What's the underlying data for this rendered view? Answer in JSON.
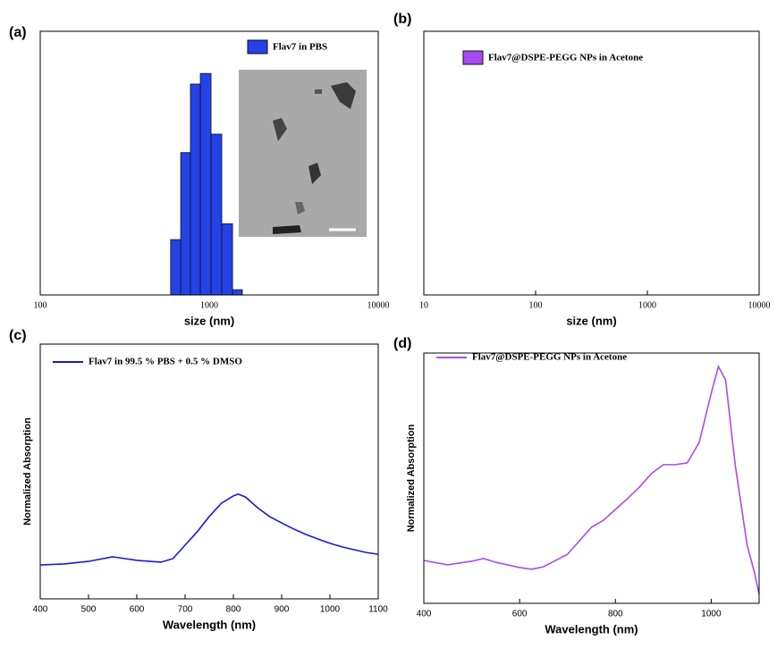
{
  "chart_data": [
    {
      "type": "histogram",
      "label": "(a)",
      "xlabel": "size (nm)",
      "xscale": "log",
      "xlim": [
        100,
        10000
      ],
      "xticks": [
        100,
        1000,
        10000
      ],
      "ylim": [
        0,
        100
      ],
      "legend": "upper right",
      "bins": [
        591,
        678,
        774,
        886,
        1025,
        1186,
        1374,
        1570
      ],
      "series": [
        {
          "name": "Flav7 in PBS",
          "color": "#2442e6",
          "values": [
            21,
            54,
            80,
            84,
            61,
            27,
            2
          ]
        }
      ]
    },
    {
      "type": "histogram",
      "label": "(b)",
      "xlabel": "size (nm)",
      "xscale": "log",
      "xlim": [
        10,
        10000
      ],
      "xticks": [
        10,
        100,
        1000,
        10000
      ],
      "ylim": [
        0,
        100
      ],
      "legend": "upper left",
      "bins": [],
      "series": [
        {
          "name": "Flav7@DSPE-PEGG NPs in Acetone",
          "color": "#a64cf2",
          "values": []
        }
      ]
    },
    {
      "type": "line",
      "label": "(c)",
      "xlabel": "Wavelength (nm)",
      "ylabel": "Normalized Absorption",
      "xlim": [
        400,
        1100
      ],
      "xticks": [
        400,
        500,
        600,
        700,
        800,
        900,
        1000,
        1100
      ],
      "ylim": [
        0,
        1
      ],
      "legend": "upper left",
      "x": [
        400,
        450,
        500,
        550,
        600,
        650,
        675,
        700,
        725,
        750,
        775,
        800,
        810,
        825,
        850,
        875,
        900,
        925,
        950,
        975,
        1000,
        1025,
        1050,
        1075,
        1100
      ],
      "series": [
        {
          "name": "Flav7 in 99.5 % PBS + 0.5 %  DMSO",
          "color": "#1a1ad6",
          "values": [
            0.133,
            0.137,
            0.147,
            0.165,
            0.151,
            0.144,
            0.158,
            0.211,
            0.263,
            0.323,
            0.375,
            0.404,
            0.411,
            0.4,
            0.358,
            0.323,
            0.298,
            0.274,
            0.253,
            0.235,
            0.218,
            0.204,
            0.193,
            0.182,
            0.175
          ]
        }
      ]
    },
    {
      "type": "line",
      "label": "(d)",
      "xlabel": "Wavelength (nm)",
      "ylabel": "Normalized Absorption",
      "xlim": [
        400,
        1100
      ],
      "xticks": [
        400,
        600,
        800,
        1000
      ],
      "ylim": [
        0,
        1
      ],
      "legend": "upper left",
      "x": [
        400,
        450,
        500,
        525,
        550,
        600,
        625,
        650,
        700,
        725,
        750,
        775,
        800,
        825,
        850,
        875,
        900,
        925,
        950,
        975,
        1000,
        1015,
        1030,
        1050,
        1075,
        1090,
        1100
      ],
      "series": [
        {
          "name": "Flav7@DSPE-PEGG NPs in Acetone",
          "color": "#a64cf2",
          "values": [
            0.171,
            0.154,
            0.168,
            0.179,
            0.164,
            0.143,
            0.136,
            0.146,
            0.196,
            0.25,
            0.304,
            0.332,
            0.375,
            0.418,
            0.464,
            0.518,
            0.554,
            0.554,
            0.561,
            0.643,
            0.839,
            0.946,
            0.893,
            0.554,
            0.232,
            0.125,
            0.036
          ]
        }
      ]
    }
  ]
}
